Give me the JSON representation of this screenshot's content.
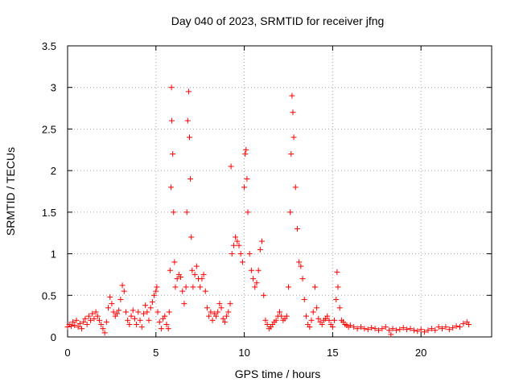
{
  "chart_data": {
    "type": "scatter",
    "title": "Day 040 of 2023, SRMTID for receiver jfng",
    "xlabel": "GPS time / hours",
    "ylabel": "SRMTID / TECUs",
    "xlim": [
      0,
      24
    ],
    "ylim": [
      0,
      3.5
    ],
    "xticks": [
      0,
      5,
      10,
      15,
      20
    ],
    "xtick_labels": [
      "0",
      "5",
      "10",
      "15",
      "20"
    ],
    "yticks": [
      0,
      0.5,
      1,
      1.5,
      2,
      2.5,
      3,
      3.5
    ],
    "ytick_labels": [
      "0",
      "0.5",
      "1",
      "1.5",
      "2",
      "2.5",
      "3",
      "3.5"
    ],
    "grid": true,
    "marker": "+",
    "series": [
      {
        "name": "SRMTID",
        "color": "#ff0000",
        "points": [
          [
            0.0,
            0.12
          ],
          [
            0.1,
            0.15
          ],
          [
            0.2,
            0.13
          ],
          [
            0.3,
            0.18
          ],
          [
            0.4,
            0.14
          ],
          [
            0.5,
            0.2
          ],
          [
            0.6,
            0.12
          ],
          [
            0.7,
            0.16
          ],
          [
            0.8,
            0.1
          ],
          [
            0.9,
            0.18
          ],
          [
            1.0,
            0.22
          ],
          [
            1.1,
            0.15
          ],
          [
            1.2,
            0.25
          ],
          [
            1.3,
            0.2
          ],
          [
            1.4,
            0.28
          ],
          [
            1.5,
            0.22
          ],
          [
            1.6,
            0.3
          ],
          [
            1.7,
            0.25
          ],
          [
            1.8,
            0.2
          ],
          [
            1.9,
            0.15
          ],
          [
            2.0,
            0.1
          ],
          [
            2.1,
            0.05
          ],
          [
            2.2,
            0.18
          ],
          [
            2.3,
            0.35
          ],
          [
            2.4,
            0.48
          ],
          [
            2.5,
            0.4
          ],
          [
            2.6,
            0.3
          ],
          [
            2.7,
            0.25
          ],
          [
            2.8,
            0.28
          ],
          [
            2.9,
            0.32
          ],
          [
            3.0,
            0.45
          ],
          [
            3.1,
            0.62
          ],
          [
            3.2,
            0.55
          ],
          [
            3.3,
            0.3
          ],
          [
            3.4,
            0.2
          ],
          [
            3.5,
            0.15
          ],
          [
            3.6,
            0.25
          ],
          [
            3.7,
            0.32
          ],
          [
            3.8,
            0.22
          ],
          [
            3.9,
            0.15
          ],
          [
            4.0,
            0.3
          ],
          [
            4.1,
            0.2
          ],
          [
            4.2,
            0.12
          ],
          [
            4.3,
            0.28
          ],
          [
            4.4,
            0.38
          ],
          [
            4.5,
            0.3
          ],
          [
            4.6,
            0.2
          ],
          [
            4.7,
            0.35
          ],
          [
            4.8,
            0.42
          ],
          [
            4.9,
            0.5
          ],
          [
            5.0,
            0.55
          ],
          [
            5.05,
            0.6
          ],
          [
            5.1,
            0.3
          ],
          [
            5.2,
            0.18
          ],
          [
            5.3,
            0.1
          ],
          [
            5.4,
            0.22
          ],
          [
            5.5,
            0.25
          ],
          [
            5.6,
            0.15
          ],
          [
            5.7,
            0.1
          ],
          [
            5.75,
            0.3
          ],
          [
            5.8,
            0.8
          ],
          [
            5.85,
            1.8
          ],
          [
            5.88,
            3.0
          ],
          [
            5.9,
            2.6
          ],
          [
            5.95,
            2.2
          ],
          [
            6.0,
            1.5
          ],
          [
            6.05,
            0.9
          ],
          [
            6.1,
            0.6
          ],
          [
            6.2,
            0.7
          ],
          [
            6.3,
            0.75
          ],
          [
            6.4,
            0.72
          ],
          [
            6.5,
            0.55
          ],
          [
            6.6,
            0.4
          ],
          [
            6.7,
            0.6
          ],
          [
            6.75,
            1.5
          ],
          [
            6.8,
            2.6
          ],
          [
            6.85,
            2.95
          ],
          [
            6.9,
            2.4
          ],
          [
            6.95,
            1.9
          ],
          [
            7.0,
            1.2
          ],
          [
            7.05,
            0.8
          ],
          [
            7.1,
            0.6
          ],
          [
            7.2,
            0.75
          ],
          [
            7.3,
            0.85
          ],
          [
            7.4,
            0.7
          ],
          [
            7.5,
            0.6
          ],
          [
            7.6,
            0.7
          ],
          [
            7.7,
            0.75
          ],
          [
            7.8,
            0.55
          ],
          [
            7.9,
            0.35
          ],
          [
            8.0,
            0.25
          ],
          [
            8.1,
            0.3
          ],
          [
            8.2,
            0.2
          ],
          [
            8.3,
            0.28
          ],
          [
            8.4,
            0.25
          ],
          [
            8.5,
            0.3
          ],
          [
            8.6,
            0.4
          ],
          [
            8.7,
            0.35
          ],
          [
            8.8,
            0.22
          ],
          [
            8.9,
            0.18
          ],
          [
            9.0,
            0.25
          ],
          [
            9.1,
            0.3
          ],
          [
            9.2,
            0.4
          ],
          [
            9.25,
            2.05
          ],
          [
            9.3,
            1.0
          ],
          [
            9.4,
            1.1
          ],
          [
            9.5,
            1.2
          ],
          [
            9.6,
            1.15
          ],
          [
            9.7,
            1.1
          ],
          [
            9.8,
            1.0
          ],
          [
            9.9,
            0.9
          ],
          [
            10.0,
            1.8
          ],
          [
            10.05,
            2.2
          ],
          [
            10.1,
            2.25
          ],
          [
            10.15,
            1.9
          ],
          [
            10.2,
            1.5
          ],
          [
            10.3,
            1.0
          ],
          [
            10.4,
            0.8
          ],
          [
            10.5,
            0.7
          ],
          [
            10.6,
            0.6
          ],
          [
            10.7,
            0.65
          ],
          [
            10.8,
            0.8
          ],
          [
            10.9,
            1.05
          ],
          [
            11.0,
            1.15
          ],
          [
            11.1,
            0.5
          ],
          [
            11.2,
            0.2
          ],
          [
            11.3,
            0.15
          ],
          [
            11.4,
            0.1
          ],
          [
            11.5,
            0.12
          ],
          [
            11.6,
            0.15
          ],
          [
            11.7,
            0.18
          ],
          [
            11.8,
            0.2
          ],
          [
            11.9,
            0.25
          ],
          [
            12.0,
            0.3
          ],
          [
            12.1,
            0.25
          ],
          [
            12.2,
            0.2
          ],
          [
            12.3,
            0.22
          ],
          [
            12.4,
            0.25
          ],
          [
            12.5,
            0.6
          ],
          [
            12.6,
            1.5
          ],
          [
            12.65,
            2.2
          ],
          [
            12.7,
            2.9
          ],
          [
            12.75,
            2.7
          ],
          [
            12.8,
            2.4
          ],
          [
            12.9,
            1.8
          ],
          [
            13.0,
            1.3
          ],
          [
            13.1,
            0.9
          ],
          [
            13.2,
            0.85
          ],
          [
            13.3,
            0.7
          ],
          [
            13.4,
            0.45
          ],
          [
            13.5,
            0.25
          ],
          [
            13.6,
            0.15
          ],
          [
            13.7,
            0.12
          ],
          [
            13.8,
            0.2
          ],
          [
            13.9,
            0.3
          ],
          [
            14.0,
            0.6
          ],
          [
            14.1,
            0.35
          ],
          [
            14.2,
            0.22
          ],
          [
            14.3,
            0.18
          ],
          [
            14.4,
            0.15
          ],
          [
            14.5,
            0.2
          ],
          [
            14.6,
            0.22
          ],
          [
            14.7,
            0.25
          ],
          [
            14.8,
            0.2
          ],
          [
            14.9,
            0.15
          ],
          [
            15.0,
            0.12
          ],
          [
            15.1,
            0.2
          ],
          [
            15.2,
            0.45
          ],
          [
            15.25,
            0.78
          ],
          [
            15.3,
            0.6
          ],
          [
            15.4,
            0.35
          ],
          [
            15.5,
            0.2
          ],
          [
            15.6,
            0.18
          ],
          [
            15.7,
            0.15
          ],
          [
            15.8,
            0.14
          ],
          [
            15.9,
            0.12
          ],
          [
            16.0,
            0.14
          ],
          [
            16.2,
            0.12
          ],
          [
            16.4,
            0.1
          ],
          [
            16.6,
            0.12
          ],
          [
            16.8,
            0.1
          ],
          [
            17.0,
            0.09
          ],
          [
            17.2,
            0.11
          ],
          [
            17.4,
            0.1
          ],
          [
            17.6,
            0.08
          ],
          [
            17.8,
            0.1
          ],
          [
            18.0,
            0.12
          ],
          [
            18.2,
            0.08
          ],
          [
            18.3,
            0.03
          ],
          [
            18.4,
            0.1
          ],
          [
            18.6,
            0.08
          ],
          [
            18.8,
            0.09
          ],
          [
            19.0,
            0.11
          ],
          [
            19.2,
            0.09
          ],
          [
            19.4,
            0.1
          ],
          [
            19.6,
            0.08
          ],
          [
            19.8,
            0.07
          ],
          [
            20.0,
            0.09
          ],
          [
            20.2,
            0.06
          ],
          [
            20.4,
            0.08
          ],
          [
            20.6,
            0.1
          ],
          [
            20.8,
            0.08
          ],
          [
            21.0,
            0.12
          ],
          [
            21.2,
            0.1
          ],
          [
            21.4,
            0.12
          ],
          [
            21.6,
            0.09
          ],
          [
            21.8,
            0.11
          ],
          [
            22.0,
            0.13
          ],
          [
            22.2,
            0.12
          ],
          [
            22.4,
            0.16
          ],
          [
            22.6,
            0.18
          ],
          [
            22.7,
            0.15
          ]
        ]
      }
    ]
  }
}
